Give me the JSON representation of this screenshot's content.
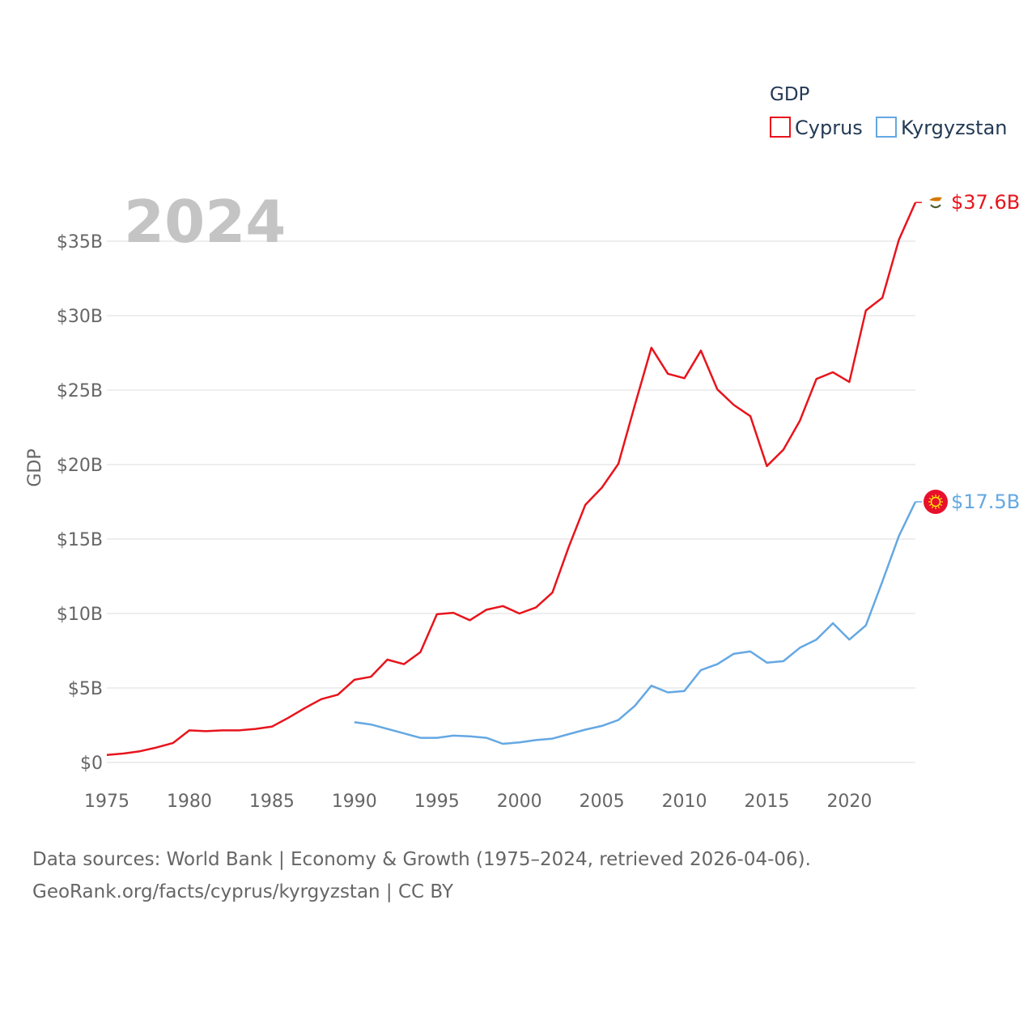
{
  "chart_data": {
    "type": "line",
    "year_label": "2024",
    "ylabel": "GDP",
    "xlim": [
      1975,
      2024
    ],
    "ylim": [
      0,
      38
    ],
    "x_ticks": [
      1975,
      1980,
      1985,
      1990,
      1995,
      2000,
      2005,
      2010,
      2015,
      2020
    ],
    "y_ticks": [
      {
        "value": 0,
        "label": "$0"
      },
      {
        "value": 5,
        "label": "$5B"
      },
      {
        "value": 10,
        "label": "$10B"
      },
      {
        "value": 15,
        "label": "$15B"
      },
      {
        "value": 20,
        "label": "$20B"
      },
      {
        "value": 25,
        "label": "$25B"
      },
      {
        "value": 30,
        "label": "$30B"
      },
      {
        "value": 35,
        "label": "$35B"
      }
    ],
    "legend": {
      "title": "GDP",
      "position": "top-right"
    },
    "series": [
      {
        "name": "Cyprus",
        "color": "#e8141c",
        "end_label": "$37.6B",
        "icon": "cyprus-flag-icon",
        "x": [
          1975,
          1976,
          1977,
          1978,
          1979,
          1980,
          1981,
          1982,
          1983,
          1984,
          1985,
          1986,
          1987,
          1988,
          1989,
          1990,
          1991,
          1992,
          1993,
          1994,
          1995,
          1996,
          1997,
          1998,
          1999,
          2000,
          2001,
          2002,
          2003,
          2004,
          2005,
          2006,
          2007,
          2008,
          2009,
          2010,
          2011,
          2012,
          2013,
          2014,
          2015,
          2016,
          2017,
          2018,
          2019,
          2020,
          2021,
          2022,
          2023,
          2024
        ],
        "values": [
          0.5,
          0.6,
          0.75,
          1.0,
          1.3,
          2.15,
          2.1,
          2.15,
          2.15,
          2.25,
          2.4,
          3.0,
          3.65,
          4.25,
          4.55,
          5.55,
          5.75,
          6.9,
          6.6,
          7.4,
          9.95,
          10.05,
          9.55,
          10.25,
          10.5,
          10.0,
          10.4,
          11.4,
          14.5,
          17.3,
          18.45,
          20.05,
          24.0,
          27.85,
          26.1,
          25.8,
          27.65,
          25.05,
          24.0,
          23.25,
          19.9,
          21.0,
          22.95,
          25.75,
          26.2,
          25.55,
          30.35,
          31.2,
          35.1,
          37.6
        ]
      },
      {
        "name": "Kyrgyzstan",
        "color": "#64a8e3",
        "end_label": "$17.5B",
        "icon": "kyrgyzstan-flag-icon",
        "x": [
          1990,
          1991,
          1992,
          1993,
          1994,
          1995,
          1996,
          1997,
          1998,
          1999,
          2000,
          2001,
          2002,
          2003,
          2004,
          2005,
          2006,
          2007,
          2008,
          2009,
          2010,
          2011,
          2012,
          2013,
          2014,
          2015,
          2016,
          2017,
          2018,
          2019,
          2020,
          2021,
          2022,
          2023,
          2024
        ],
        "values": [
          2.7,
          2.55,
          2.25,
          1.95,
          1.65,
          1.65,
          1.8,
          1.75,
          1.65,
          1.25,
          1.35,
          1.5,
          1.6,
          1.9,
          2.2,
          2.45,
          2.85,
          3.8,
          5.15,
          4.7,
          4.8,
          6.2,
          6.6,
          7.3,
          7.45,
          6.7,
          6.8,
          7.7,
          8.25,
          9.35,
          8.25,
          9.2,
          12.15,
          15.2,
          17.5
        ]
      }
    ]
  },
  "source": {
    "line1": "Data sources: World Bank | Economy & Growth (1975–2024, retrieved 2026-04-06).",
    "line2": "GeoRank.org/facts/cyprus/kyrgyzstan | CC BY"
  }
}
